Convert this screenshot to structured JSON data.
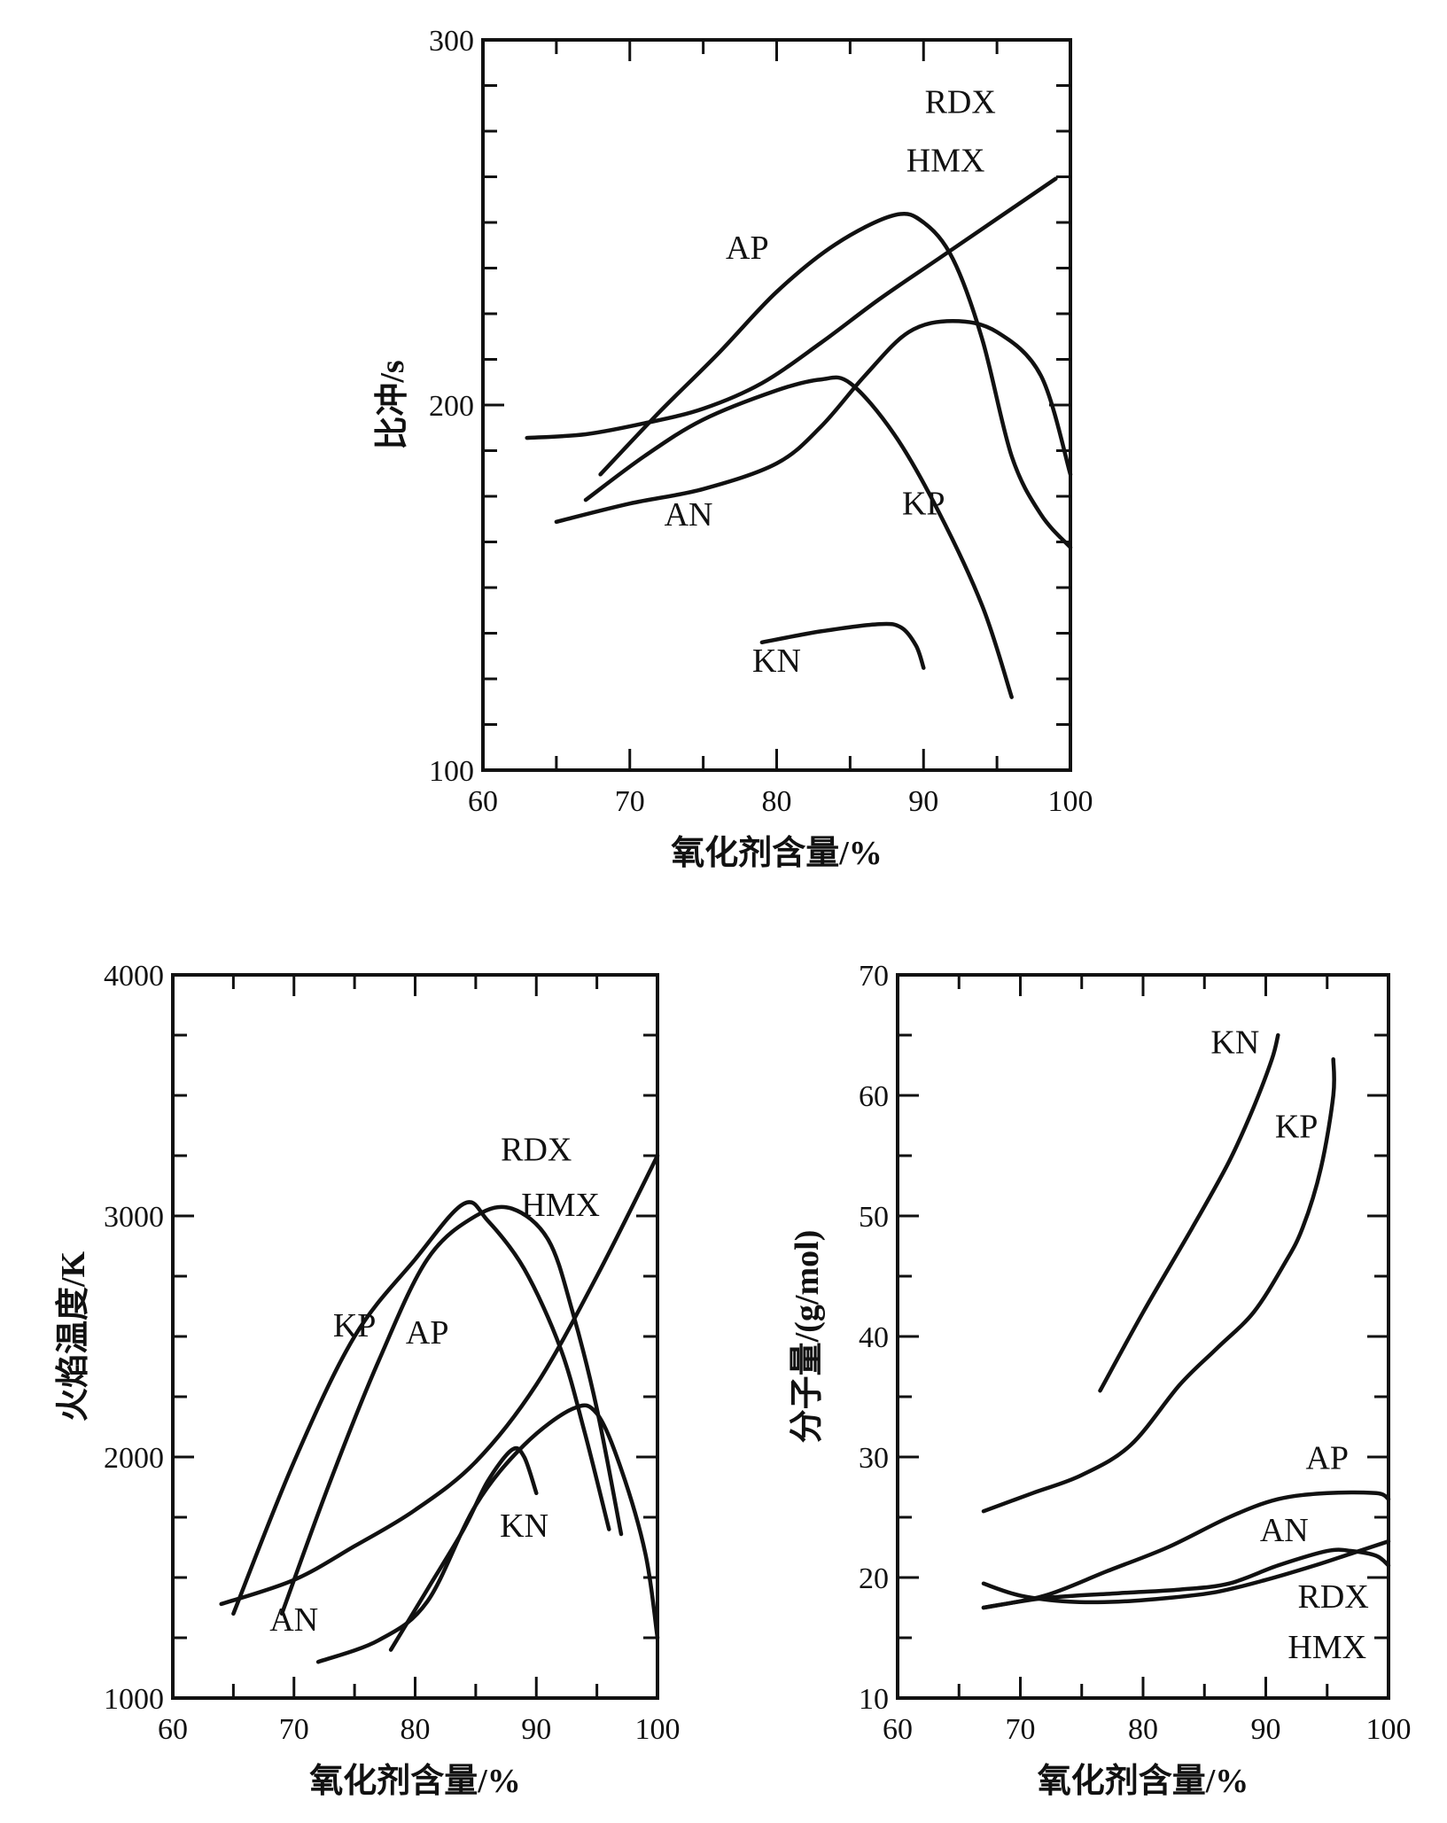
{
  "chart_data": [
    {
      "type": "line",
      "xlabel": "氧化剂含量/%",
      "ylabel": "比冲/s",
      "xlim": [
        60,
        100
      ],
      "ylim": [
        100,
        300
      ],
      "x_ticks": [
        "60",
        "70",
        "80",
        "90",
        "100"
      ],
      "y_ticks": [
        "100",
        "200",
        "300"
      ],
      "series": [
        {
          "name": "AP",
          "points": [
            [
              68,
              181
            ],
            [
              72,
              198
            ],
            [
              76,
              214
            ],
            [
              80,
              231
            ],
            [
              84,
              244
            ],
            [
              88,
              252
            ],
            [
              90,
              250
            ],
            [
              92,
              240
            ],
            [
              94,
              218
            ],
            [
              96,
              186
            ],
            [
              98,
              170
            ],
            [
              100,
              161
            ]
          ]
        },
        {
          "name": "RDX HMX",
          "points": [
            [
              63,
              191
            ],
            [
              67,
              192
            ],
            [
              71,
              195
            ],
            [
              75,
              199
            ],
            [
              79,
              206
            ],
            [
              83,
              217
            ],
            [
              87,
              229
            ],
            [
              91,
              240
            ],
            [
              95,
              251
            ],
            [
              99,
              262
            ]
          ]
        },
        {
          "name": "AN",
          "points": [
            [
              65,
              168
            ],
            [
              70,
              173
            ],
            [
              75,
              177
            ],
            [
              80,
              184
            ],
            [
              83,
              194
            ],
            [
              86,
              208
            ],
            [
              89,
              220
            ],
            [
              92,
              223
            ],
            [
              95,
              220
            ],
            [
              98,
              208
            ],
            [
              100,
              181
            ]
          ]
        },
        {
          "name": "KP",
          "points": [
            [
              67,
              174
            ],
            [
              71,
              186
            ],
            [
              75,
              196
            ],
            [
              80,
              204
            ],
            [
              83,
              207
            ],
            [
              85,
              206
            ],
            [
              88,
              192
            ],
            [
              91,
              171
            ],
            [
              94,
              145
            ],
            [
              96,
              120
            ]
          ]
        },
        {
          "name": "KN",
          "points": [
            [
              79,
              135
            ],
            [
              83,
              138
            ],
            [
              87,
              140
            ],
            [
              88.5,
              139
            ],
            [
              89.5,
              134
            ],
            [
              90,
              128
            ]
          ]
        }
      ],
      "labels": [
        {
          "text": "RDX",
          "x": 92.5,
          "y": 280
        },
        {
          "text": "HMX",
          "x": 91.5,
          "y": 264
        },
        {
          "text": "AP",
          "x": 78,
          "y": 240
        },
        {
          "text": "AN",
          "x": 74,
          "y": 167
        },
        {
          "text": "KP",
          "x": 90,
          "y": 170
        },
        {
          "text": "KN",
          "x": 80,
          "y": 127
        }
      ]
    },
    {
      "type": "line",
      "xlabel": "氧化剂含量/%",
      "ylabel": "火焰温度/K",
      "xlim": [
        60,
        100
      ],
      "ylim": [
        1000,
        4000
      ],
      "x_ticks": [
        "60",
        "70",
        "80",
        "90",
        "100"
      ],
      "y_ticks": [
        "1000",
        "2000",
        "3000",
        "4000"
      ],
      "series": [
        {
          "name": "KP",
          "points": [
            [
              65,
              1350
            ],
            [
              70,
              1980
            ],
            [
              75,
              2500
            ],
            [
              80,
              2820
            ],
            [
              84,
              3050
            ],
            [
              86,
              2980
            ],
            [
              89,
              2780
            ],
            [
              92,
              2450
            ],
            [
              94,
              2100
            ],
            [
              96,
              1700
            ]
          ]
        },
        {
          "name": "AP",
          "points": [
            [
              69,
              1350
            ],
            [
              73,
              1900
            ],
            [
              77,
              2400
            ],
            [
              81,
              2820
            ],
            [
              85,
              3000
            ],
            [
              88,
              3030
            ],
            [
              91,
              2900
            ],
            [
              93,
              2600
            ],
            [
              95,
              2200
            ],
            [
              97,
              1680
            ]
          ]
        },
        {
          "name": "RDX HMX",
          "points": [
            [
              64,
              1390
            ],
            [
              70,
              1490
            ],
            [
              75,
              1630
            ],
            [
              80,
              1780
            ],
            [
              85,
              1980
            ],
            [
              90,
              2300
            ],
            [
              95,
              2750
            ],
            [
              100,
              3250
            ]
          ]
        },
        {
          "name": "AN",
          "points": [
            [
              72,
              1150
            ],
            [
              77,
              1240
            ],
            [
              81,
              1400
            ],
            [
              85,
              1800
            ],
            [
              89,
              2050
            ],
            [
              93,
              2200
            ],
            [
              95,
              2180
            ],
            [
              97,
              1950
            ],
            [
              99,
              1600
            ],
            [
              100,
              1250
            ]
          ]
        },
        {
          "name": "KN",
          "points": [
            [
              78,
              1200
            ],
            [
              81,
              1450
            ],
            [
              84,
              1700
            ],
            [
              86,
              1900
            ],
            [
              88,
              2030
            ],
            [
              89,
              2000
            ],
            [
              90,
              1850
            ]
          ]
        }
      ],
      "labels": [
        {
          "text": "RDX",
          "x": 90,
          "y": 3230
        },
        {
          "text": "HMX",
          "x": 92,
          "y": 3000
        },
        {
          "text": "KP",
          "x": 75,
          "y": 2500
        },
        {
          "text": "AP",
          "x": 81,
          "y": 2470
        },
        {
          "text": "AN",
          "x": 70,
          "y": 1280
        },
        {
          "text": "KN",
          "x": 89,
          "y": 1670
        }
      ]
    },
    {
      "type": "line",
      "xlabel": "氧化剂含量/%",
      "ylabel": "分子量/(g/mol)",
      "xlim": [
        60,
        100
      ],
      "ylim": [
        10,
        70
      ],
      "x_ticks": [
        "60",
        "70",
        "80",
        "90",
        "100"
      ],
      "y_ticks": [
        "10",
        "20",
        "30",
        "40",
        "50",
        "60",
        "70"
      ],
      "series": [
        {
          "name": "KN",
          "points": [
            [
              76.5,
              35.5
            ],
            [
              80,
              42
            ],
            [
              84,
              49
            ],
            [
              87,
              54.5
            ],
            [
              89,
              59
            ],
            [
              90.5,
              63
            ],
            [
              91,
              65
            ]
          ]
        },
        {
          "name": "KP",
          "points": [
            [
              67,
              25.5
            ],
            [
              71,
              27
            ],
            [
              75,
              28.5
            ],
            [
              79,
              31
            ],
            [
              83,
              36
            ],
            [
              86,
              39
            ],
            [
              89,
              42
            ],
            [
              91.5,
              46
            ],
            [
              93,
              49
            ],
            [
              94.5,
              54
            ],
            [
              95.5,
              60
            ],
            [
              95.5,
              63
            ]
          ]
        },
        {
          "name": "AP",
          "points": [
            [
              67,
              17.5
            ],
            [
              72,
              18.5
            ],
            [
              77,
              20.5
            ],
            [
              82,
              22.5
            ],
            [
              87,
              25
            ],
            [
              91,
              26.5
            ],
            [
              95,
              27
            ],
            [
              99,
              27
            ],
            [
              100,
              26.5
            ]
          ]
        },
        {
          "name": "AN",
          "points": [
            [
              67,
              17.5
            ],
            [
              72,
              18.3
            ],
            [
              78,
              18.7
            ],
            [
              83,
              19
            ],
            [
              87,
              19.5
            ],
            [
              91,
              21
            ],
            [
              95,
              22.2
            ],
            [
              97,
              22.2
            ],
            [
              99,
              21.8
            ],
            [
              100,
              21
            ]
          ]
        },
        {
          "name": "RDX HMX",
          "points": [
            [
              67,
              19.5
            ],
            [
              70,
              18.5
            ],
            [
              74,
              18
            ],
            [
              78,
              18
            ],
            [
              82,
              18.3
            ],
            [
              86,
              18.8
            ],
            [
              90,
              19.8
            ],
            [
              94,
              21
            ],
            [
              97,
              22
            ],
            [
              100,
              23
            ]
          ]
        }
      ],
      "labels": [
        {
          "text": "KN",
          "x": 87.5,
          "y": 63.5
        },
        {
          "text": "KP",
          "x": 92.5,
          "y": 56.5
        },
        {
          "text": "AP",
          "x": 95,
          "y": 29
        },
        {
          "text": "AN",
          "x": 91.5,
          "y": 23
        },
        {
          "text": "RDX",
          "x": 95.5,
          "y": 17.5
        },
        {
          "text": "HMX",
          "x": 95,
          "y": 13.3
        }
      ]
    }
  ]
}
